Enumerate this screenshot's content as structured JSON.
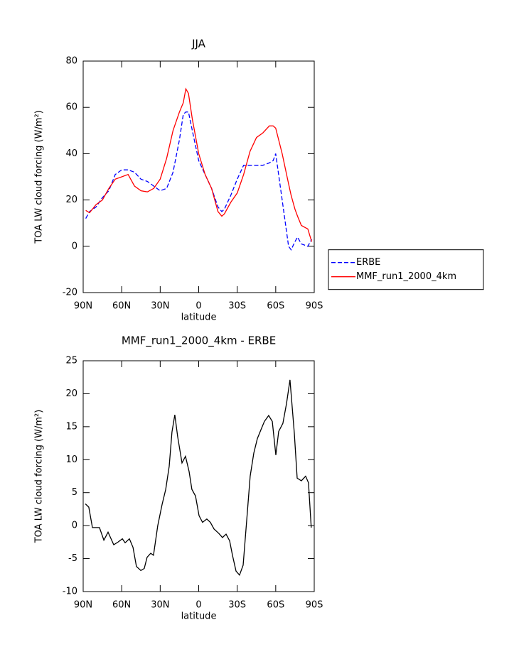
{
  "chart_data": [
    {
      "type": "line",
      "title": "JJA",
      "xlabel": "latitude",
      "ylabel": "TOA LW cloud forcing (W/m²)",
      "x": [
        88,
        85,
        80,
        75,
        70,
        65,
        60,
        55,
        50,
        45,
        40,
        35,
        30,
        25,
        20,
        15,
        12,
        10,
        8,
        5,
        0,
        -5,
        -10,
        -15,
        -18,
        -20,
        -25,
        -30,
        -35,
        -40,
        -45,
        -50,
        -55,
        -58,
        -60,
        -65,
        -70,
        -72,
        -75,
        -77,
        -80,
        -85,
        -88
      ],
      "series": [
        {
          "name": "ERBE",
          "color": "#0000ff",
          "style": "dashed",
          "values": [
            12,
            15,
            17,
            21,
            24,
            31,
            33,
            33,
            32,
            29,
            28,
            26,
            24,
            25,
            32,
            46,
            57,
            58,
            58,
            50,
            37,
            31,
            25,
            17,
            15,
            16,
            22,
            29,
            35,
            35,
            35,
            35,
            36,
            37,
            40,
            20,
            0,
            -1.5,
            2,
            4,
            1,
            0,
            3
          ]
        },
        {
          "name": "MMF_run1_2000_4km",
          "color": "#ff0000",
          "style": "solid",
          "values": [
            15.5,
            14.5,
            18,
            20,
            25,
            29,
            30,
            31,
            26,
            24,
            23.5,
            25,
            29,
            38,
            50,
            58,
            62,
            68,
            66,
            55,
            40,
            31,
            25,
            15,
            13,
            14,
            19,
            23,
            31,
            41,
            47,
            49,
            52,
            52,
            51,
            40,
            27,
            22,
            16,
            13,
            9,
            7.5,
            2
          ]
        }
      ],
      "xlim": [
        90,
        -90
      ],
      "xticks": [
        {
          "value": 90,
          "label": "90N"
        },
        {
          "value": 60,
          "label": "60N"
        },
        {
          "value": 30,
          "label": "30N"
        },
        0,
        {
          "value": -30,
          "label": "30S"
        },
        {
          "value": -60,
          "label": "60S"
        },
        {
          "value": -90,
          "label": "90S"
        }
      ],
      "ylim": [
        -20,
        80
      ],
      "yticks": [
        -20,
        0,
        20,
        40,
        60,
        80
      ],
      "legend": "outside right"
    },
    {
      "type": "line",
      "title": "MMF_run1_2000_4km - ERBE",
      "xlabel": "latitude",
      "ylabel": "TOA LW cloud forcing (W/m²)",
      "x": [
        88.3,
        85.6,
        82.8,
        77.3,
        73.9,
        70.6,
        66.2,
        62.9,
        59.5,
        57.3,
        54.0,
        51.2,
        48.5,
        45.1,
        42.4,
        40.2,
        37.4,
        35.2,
        31.9,
        28.5,
        25.7,
        23.0,
        20.8,
        18.6,
        16.4,
        13.0,
        10.3,
        7.5,
        5.3,
        2.5,
        -0.3,
        -3.0,
        -6.3,
        -9.1,
        -11.9,
        -15.8,
        -18.5,
        -21.3,
        -24.1,
        -26.3,
        -29.1,
        -31.8,
        -34.6,
        -37.9,
        -40.1,
        -42.9,
        -45.7,
        -48.4,
        -51.2,
        -54.5,
        -57.3,
        -60.1,
        -62.3,
        -65.6,
        -68.4,
        -71.1,
        -74.5,
        -76.7,
        -80.0,
        -83.3,
        -85.5,
        -87.7
      ],
      "series": [
        {
          "color": "#000000",
          "style": "solid",
          "values": [
            3.3,
            2.8,
            -0.3,
            -0.3,
            -2.2,
            -1.0,
            -2.9,
            -2.5,
            -2.0,
            -2.6,
            -2.0,
            -3.3,
            -6.2,
            -6.8,
            -6.5,
            -4.8,
            -4.2,
            -4.5,
            0.0,
            3.2,
            5.5,
            9.0,
            14.2,
            16.8,
            13.5,
            9.5,
            10.5,
            8.2,
            5.5,
            4.5,
            1.5,
            0.5,
            1.0,
            0.5,
            -0.5,
            -1.2,
            -1.8,
            -1.3,
            -2.3,
            -4.5,
            -6.9,
            -7.5,
            -6.0,
            2.0,
            7.5,
            11.0,
            13.2,
            14.5,
            15.8,
            16.7,
            15.8,
            10.7,
            14.3,
            15.5,
            18.5,
            22.1,
            14.0,
            7.2,
            6.8,
            7.5,
            6.5,
            -0.3
          ]
        }
      ],
      "xlim": [
        90,
        -90
      ],
      "xticks": [
        {
          "value": 90,
          "label": "90N"
        },
        {
          "value": 60,
          "label": "60N"
        },
        {
          "value": 30,
          "label": "30N"
        },
        0,
        {
          "value": -30,
          "label": "30S"
        },
        {
          "value": -60,
          "label": "60S"
        },
        {
          "value": -90,
          "label": "90S"
        }
      ],
      "ylim": [
        -10,
        25
      ],
      "yticks": [
        -10,
        -5,
        0,
        5,
        10,
        15,
        20,
        25
      ]
    }
  ]
}
